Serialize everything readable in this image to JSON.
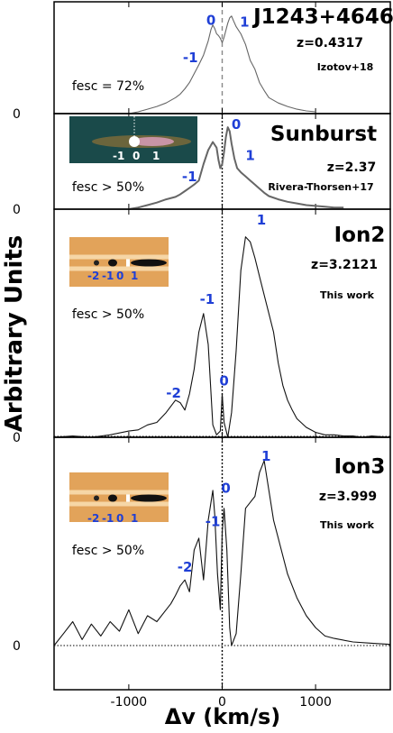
{
  "chart_data": {
    "type": "line",
    "xlabel": "Δv (km/s)",
    "ylabel": "Arbitrary Units",
    "xlim": [
      -1800,
      1800
    ],
    "xticks": [
      -1000,
      0,
      1000
    ],
    "xtick_labels": [
      "-1000",
      "0",
      "1000"
    ],
    "panels": [
      {
        "id": "j1243",
        "name": "J1243+4646",
        "redshift": "z=0.4317",
        "reference": "Izotov+18",
        "fesc": "fesc = 72%",
        "zero_label": "0",
        "x": [
          -1000,
          -900,
          -800,
          -700,
          -600,
          -500,
          -450,
          -400,
          -350,
          -300,
          -250,
          -200,
          -150,
          -120,
          -100,
          -80,
          -60,
          -40,
          -20,
          0,
          20,
          40,
          60,
          80,
          100,
          120,
          150,
          200,
          250,
          300,
          350,
          400,
          450,
          500,
          600,
          700,
          800,
          900,
          1000
        ],
        "y": [
          0.0,
          0.02,
          0.05,
          0.08,
          0.12,
          0.18,
          0.22,
          0.28,
          0.35,
          0.45,
          0.55,
          0.66,
          0.82,
          0.95,
          1.0,
          0.96,
          0.9,
          0.88,
          0.85,
          0.8,
          0.86,
          0.94,
          1.02,
          1.08,
          1.1,
          1.05,
          0.98,
          0.9,
          0.78,
          0.6,
          0.5,
          0.35,
          0.26,
          0.18,
          0.12,
          0.08,
          0.05,
          0.03,
          0.02
        ],
        "ylim": [
          0,
          1.2
        ],
        "peaks": [
          {
            "label": "0",
            "x": -120,
            "y": 1.0
          },
          {
            "label": "-1",
            "x": -340,
            "y": 0.58
          },
          {
            "label": "1",
            "x": 240,
            "y": 0.98
          }
        ],
        "xtick_labels_shown": false
      },
      {
        "id": "sunburst",
        "name": "Sunburst",
        "redshift": "z=2.37",
        "reference": "Rivera-Thorsen+17",
        "fesc": "fesc > 50%",
        "zero_label": "0",
        "inset_labels": [
          "-1",
          "0",
          "1"
        ],
        "x": [
          -1000,
          -900,
          -800,
          -700,
          -600,
          -500,
          -450,
          -400,
          -350,
          -300,
          -250,
          -200,
          -150,
          -100,
          -60,
          -40,
          -20,
          0,
          20,
          40,
          60,
          80,
          100,
          130,
          160,
          200,
          250,
          300,
          350,
          400,
          450,
          500,
          600,
          700,
          800,
          900,
          1000,
          1100,
          1200,
          1300
        ],
        "y": [
          0.0,
          0.02,
          0.05,
          0.08,
          0.12,
          0.15,
          0.18,
          0.22,
          0.26,
          0.3,
          0.35,
          0.55,
          0.72,
          0.82,
          0.75,
          0.6,
          0.5,
          0.55,
          0.7,
          0.88,
          1.0,
          0.95,
          0.8,
          0.62,
          0.5,
          0.45,
          0.4,
          0.35,
          0.3,
          0.25,
          0.2,
          0.16,
          0.12,
          0.09,
          0.07,
          0.05,
          0.04,
          0.03,
          0.02,
          0.02
        ],
        "ylim": [
          0,
          1.1
        ],
        "peaks": [
          {
            "label": "0",
            "x": 150,
            "y": 0.98
          },
          {
            "label": "-1",
            "x": -350,
            "y": 0.34
          },
          {
            "label": "1",
            "x": 300,
            "y": 0.6
          }
        ],
        "xtick_labels_shown": false
      },
      {
        "id": "ion2",
        "name": "Ion2",
        "redshift": "z=3.2121",
        "reference": "This work",
        "fesc": "fesc > 50%",
        "zero_label": "0",
        "inset_labels": [
          "-2",
          "-1",
          "0",
          "1"
        ],
        "x": [
          -1800,
          -1600,
          -1400,
          -1200,
          -1000,
          -900,
          -800,
          -700,
          -600,
          -500,
          -450,
          -400,
          -350,
          -300,
          -250,
          -200,
          -150,
          -100,
          -60,
          -20,
          0,
          20,
          60,
          100,
          150,
          200,
          250,
          300,
          350,
          400,
          450,
          500,
          550,
          600,
          650,
          700,
          750,
          800,
          900,
          1000,
          1100,
          1200,
          1300,
          1400,
          1500,
          1600,
          1800
        ],
        "y": [
          0.0,
          0.01,
          0.0,
          0.02,
          0.05,
          0.06,
          0.1,
          0.12,
          0.2,
          0.3,
          0.28,
          0.22,
          0.35,
          0.55,
          0.85,
          1.0,
          0.75,
          0.1,
          0.02,
          0.05,
          0.35,
          0.12,
          0.0,
          0.2,
          0.7,
          1.35,
          1.62,
          1.58,
          1.45,
          1.3,
          1.15,
          1.0,
          0.85,
          0.6,
          0.42,
          0.3,
          0.22,
          0.15,
          0.08,
          0.04,
          0.02,
          0.02,
          0.01,
          0.01,
          0.0,
          0.01,
          0.0
        ],
        "ylim": [
          -0.1,
          1.8
        ],
        "peaks": [
          {
            "label": "1",
            "x": 420,
            "y": 1.72
          },
          {
            "label": "-1",
            "x": -160,
            "y": 1.08
          },
          {
            "label": "0",
            "x": 20,
            "y": 0.42
          },
          {
            "label": "-2",
            "x": -520,
            "y": 0.32
          }
        ],
        "xtick_labels_shown": false
      },
      {
        "id": "ion3",
        "name": "Ion3",
        "redshift": "z=3.999",
        "reference": "This work",
        "fesc": "fesc > 50%",
        "zero_label": "0",
        "inset_labels": [
          "-2",
          "-1",
          "0",
          "1"
        ],
        "x": [
          -1800,
          -1700,
          -1600,
          -1500,
          -1400,
          -1300,
          -1200,
          -1100,
          -1000,
          -900,
          -800,
          -700,
          -600,
          -550,
          -500,
          -450,
          -400,
          -350,
          -300,
          -250,
          -200,
          -150,
          -100,
          -80,
          -50,
          -20,
          0,
          20,
          50,
          80,
          100,
          150,
          200,
          250,
          300,
          350,
          400,
          450,
          500,
          550,
          600,
          700,
          800,
          900,
          1000,
          1100,
          1200,
          1400,
          1600,
          1800
        ],
        "y": [
          0.0,
          0.1,
          0.2,
          0.05,
          0.18,
          0.08,
          0.2,
          0.12,
          0.3,
          0.1,
          0.25,
          0.2,
          0.3,
          0.35,
          0.42,
          0.5,
          0.55,
          0.45,
          0.8,
          0.9,
          0.55,
          1.05,
          1.3,
          1.1,
          0.6,
          0.3,
          0.95,
          1.15,
          0.8,
          0.15,
          0.0,
          0.1,
          0.6,
          1.15,
          1.2,
          1.25,
          1.45,
          1.55,
          1.3,
          1.05,
          0.9,
          0.6,
          0.4,
          0.25,
          0.15,
          0.08,
          0.06,
          0.03,
          0.02,
          0.01
        ],
        "ylim": [
          -0.15,
          1.7
        ],
        "peaks": [
          {
            "label": "1",
            "x": 470,
            "y": 1.55
          },
          {
            "label": "0",
            "x": 40,
            "y": 1.28
          },
          {
            "label": "-1",
            "x": -100,
            "y": 1.0
          },
          {
            "label": "-2",
            "x": -400,
            "y": 0.62
          }
        ],
        "xtick_labels_shown": true
      }
    ]
  }
}
